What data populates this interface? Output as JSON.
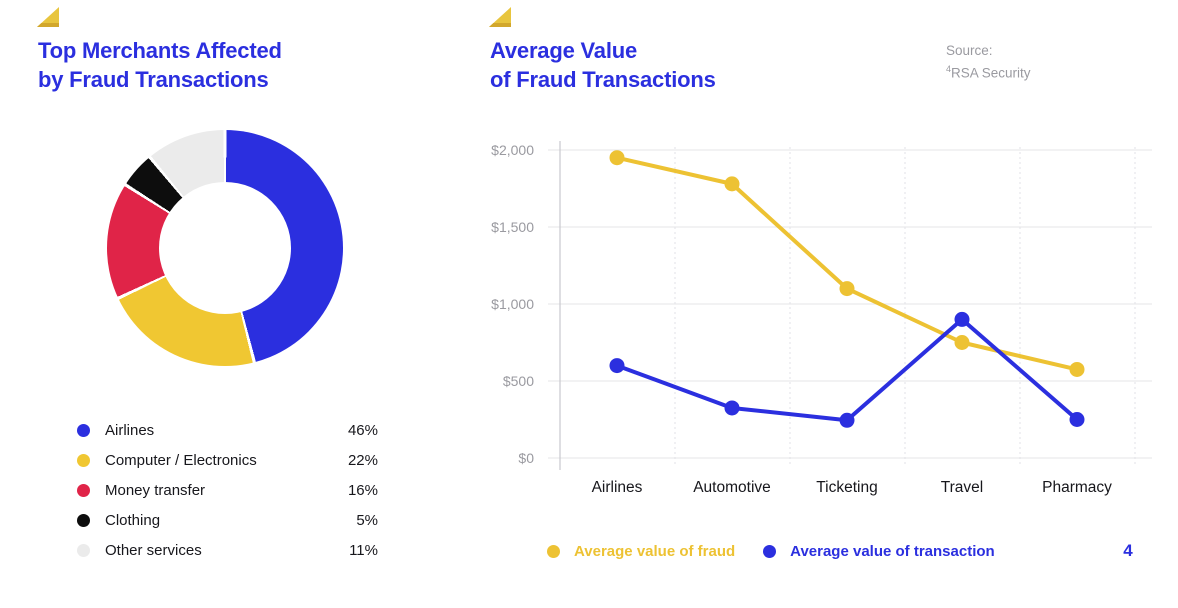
{
  "colors": {
    "accent_blue": "#2b2fdf",
    "accent_yellow": "#edc233",
    "accent_red": "#e02448",
    "accent_black": "#0d0d0d",
    "accent_light_gray": "#ebebeb",
    "text_dark": "#17171c",
    "text_muted": "#9a9aa0",
    "triangle_gold": "#e8c53e",
    "triangle_gold_dark": "#d2a72c"
  },
  "left_panel": {
    "title_line1": "Top Merchants Affected",
    "title_line2": "by Fraud Transactions"
  },
  "right_panel": {
    "title_line1": "Average Value",
    "title_line2": "of Fraud Transactions",
    "source_label": "Source:",
    "source_sup": "4",
    "source_name": "RSA Security",
    "page_number": "4"
  },
  "chart_data": [
    {
      "type": "pie",
      "subtype": "donut",
      "title": "Top Merchants Affected by Fraud Transactions",
      "start_angle_deg": 0,
      "direction": "clockwise",
      "legend_position": "bottom-left",
      "slices": [
        {
          "label": "Airlines",
          "value_pct": 46,
          "display": "46%",
          "color": "#2b2fdf"
        },
        {
          "label": "Computer / Electronics",
          "value_pct": 22,
          "display": "22%",
          "color": "#f0c732"
        },
        {
          "label": "Money transfer",
          "value_pct": 16,
          "display": "16%",
          "color": "#e02448"
        },
        {
          "label": "Clothing",
          "value_pct": 5,
          "display": "5%",
          "color": "#0d0d0d"
        },
        {
          "label": "Other services",
          "value_pct": 11,
          "display": "11%",
          "color": "#ebebeb"
        }
      ]
    },
    {
      "type": "line",
      "title": "Average Value of Fraud Transactions",
      "categories": [
        "Airlines",
        "Automotive",
        "Ticketing",
        "Travel",
        "Pharmacy"
      ],
      "series": [
        {
          "name": "Average value of fraud",
          "color": "#edc233",
          "values": [
            1950,
            1780,
            1100,
            750,
            575
          ]
        },
        {
          "name": "Average value of transaction",
          "color": "#2b2fdf",
          "values": [
            600,
            325,
            245,
            900,
            250
          ]
        }
      ],
      "ylim": [
        0,
        2000
      ],
      "y_ticks": [
        2000,
        1500,
        1000,
        500,
        0
      ],
      "y_tick_labels": [
        "$2,000",
        "$1,500",
        "$1,000",
        "$500",
        "$0"
      ],
      "grid": true,
      "vertical_gridlines": "dashed",
      "legend_position": "bottom"
    }
  ]
}
